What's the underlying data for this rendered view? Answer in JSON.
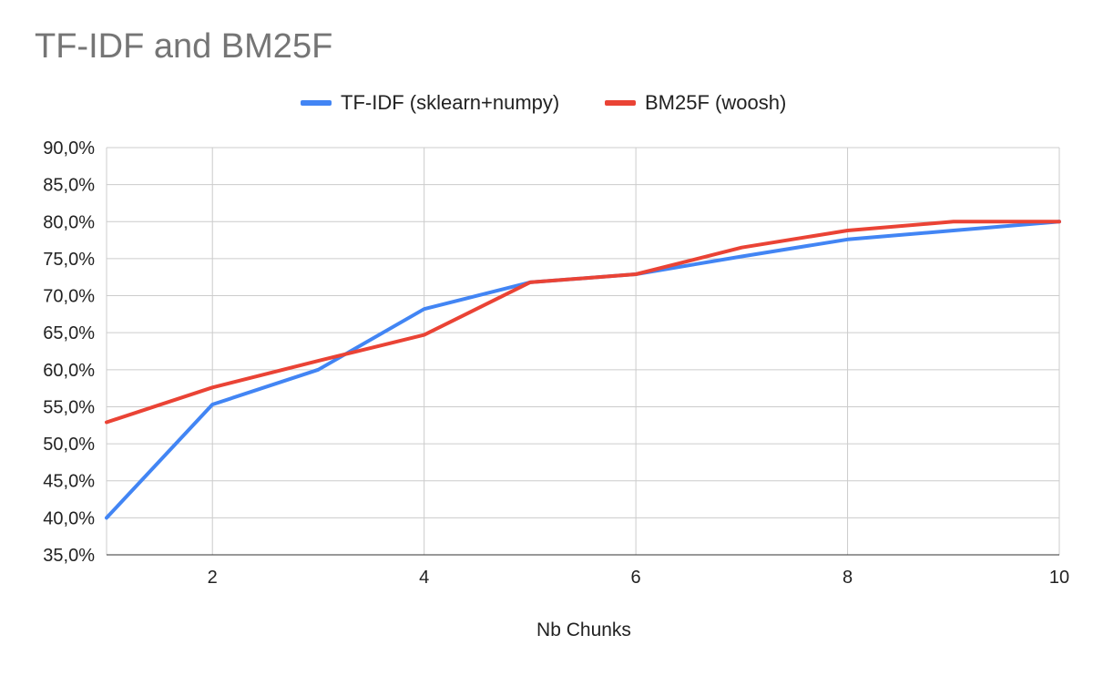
{
  "chart_data": {
    "type": "line",
    "title": "TF-IDF and BM25F",
    "xlabel": "Nb Chunks",
    "ylabel": "",
    "x": [
      1,
      2,
      3,
      4,
      5,
      6,
      7,
      8,
      9,
      10
    ],
    "xlim": [
      1,
      10
    ],
    "ylim": [
      35,
      90
    ],
    "x_ticks": [
      2,
      4,
      6,
      8,
      10
    ],
    "y_ticks": [
      35,
      40,
      45,
      50,
      55,
      60,
      65,
      70,
      75,
      80,
      85,
      90
    ],
    "y_tick_labels": [
      "35,0%",
      "40,0%",
      "45,0%",
      "50,0%",
      "55,0%",
      "60,0%",
      "65,0%",
      "70,0%",
      "75,0%",
      "80,0%",
      "85,0%",
      "90,0%"
    ],
    "grid": true,
    "legend_position": "top-center",
    "series": [
      {
        "name": "TF-IDF (sklearn+numpy)",
        "color": "#4285f4",
        "values": [
          40.0,
          55.3,
          60.0,
          68.2,
          71.8,
          72.9,
          75.3,
          77.6,
          78.8,
          80.0
        ]
      },
      {
        "name": "BM25F (woosh)",
        "color": "#ea4335",
        "values": [
          52.9,
          57.6,
          61.2,
          64.7,
          71.8,
          72.9,
          76.5,
          78.8,
          80.0,
          80.0
        ]
      }
    ]
  }
}
